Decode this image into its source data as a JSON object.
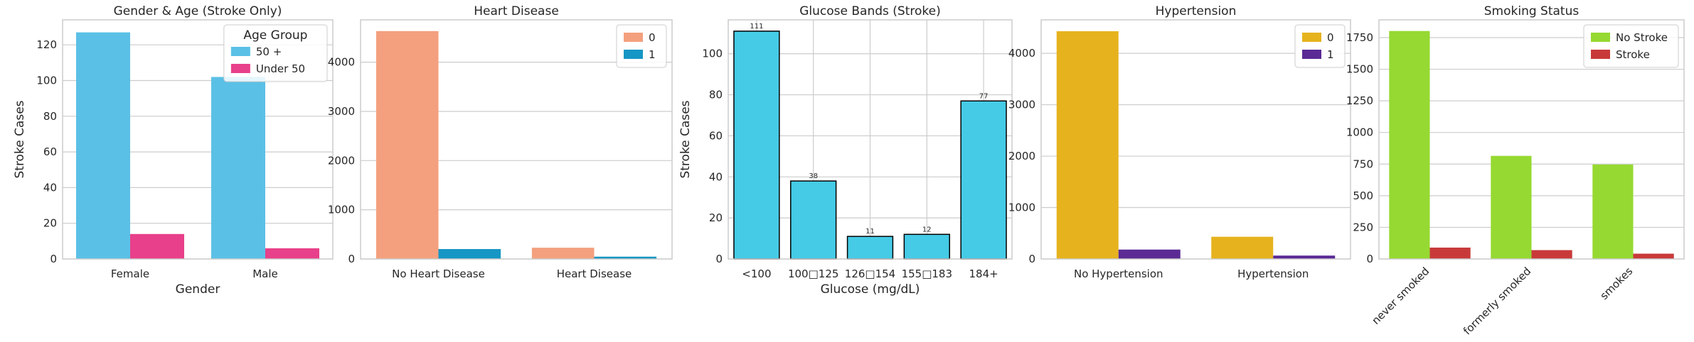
{
  "chart_data": [
    {
      "type": "bar",
      "title": "Gender & Age (Stroke Only)",
      "xlabel": "Gender",
      "ylabel": "Stroke Cases",
      "categories": [
        "Female",
        "Male"
      ],
      "series": [
        {
          "name": "50 +",
          "values": [
            127,
            102
          ],
          "color": "#5bc0e6"
        },
        {
          "name": "Under 50",
          "values": [
            14,
            6
          ],
          "color": "#e8408a"
        }
      ],
      "ylim": [
        0,
        134
      ],
      "yticks": [
        "0",
        "20",
        "40",
        "60",
        "80",
        "100",
        "120"
      ],
      "legend": {
        "title": "Age Group",
        "position": "top-right"
      },
      "grid": true
    },
    {
      "type": "bar",
      "title": "Heart Disease",
      "xlabel": "",
      "ylabel": "",
      "categories": [
        "No Heart Disease",
        "Heart Disease"
      ],
      "series": [
        {
          "name": "0",
          "values": [
            4632,
            229
          ],
          "color": "#f4a07e"
        },
        {
          "name": "1",
          "values": [
            202,
            47
          ],
          "color": "#1696c4"
        }
      ],
      "ylim": [
        0,
        4860
      ],
      "yticks": [
        "0",
        "1000",
        "2000",
        "3000",
        "4000"
      ],
      "legend": {
        "title": "",
        "position": "top-right"
      },
      "grid": true
    },
    {
      "type": "bar",
      "title": "Glucose Bands (Stroke)",
      "xlabel": "Glucose (mg/dL)",
      "ylabel": "Stroke Cases",
      "categories": [
        "<100",
        "100□125",
        "126□154",
        "155□183",
        "184+"
      ],
      "values": [
        111,
        38,
        11,
        12,
        77
      ],
      "data_labels": [
        "111",
        "38",
        "11",
        "12",
        "77"
      ],
      "color": "#45cbe6",
      "ylim": [
        0,
        116.5
      ],
      "yticks": [
        "0",
        "20",
        "40",
        "60",
        "80",
        "100"
      ],
      "grid": true
    },
    {
      "type": "bar",
      "title": "Hypertension",
      "xlabel": "",
      "ylabel": "",
      "categories": [
        "No Hypertension",
        "Hypertension"
      ],
      "series": [
        {
          "name": "0",
          "values": [
            4429,
            432
          ],
          "color": "#e6b21e"
        },
        {
          "name": "1",
          "values": [
            183,
            66
          ],
          "color": "#5b2a94"
        }
      ],
      "ylim": [
        0,
        4650
      ],
      "yticks": [
        "0",
        "1000",
        "2000",
        "3000",
        "4000"
      ],
      "legend": {
        "title": "",
        "position": "top-right"
      },
      "grid": true
    },
    {
      "type": "bar",
      "title": "Smoking Status",
      "xlabel": "",
      "ylabel": "",
      "categories": [
        "never smoked",
        "formerly smoked",
        "smokes"
      ],
      "series": [
        {
          "name": "No Stroke",
          "values": [
            1802,
            815,
            747
          ],
          "color": "#96d932"
        },
        {
          "name": "Stroke",
          "values": [
            90,
            70,
            42
          ],
          "color": "#c83a3a"
        }
      ],
      "ylim": [
        0,
        1890
      ],
      "yticks": [
        "0",
        "250",
        "500",
        "750",
        "1000",
        "1250",
        "1500",
        "1750"
      ],
      "legend": {
        "title": "",
        "position": "top-right"
      },
      "grid": true
    }
  ]
}
